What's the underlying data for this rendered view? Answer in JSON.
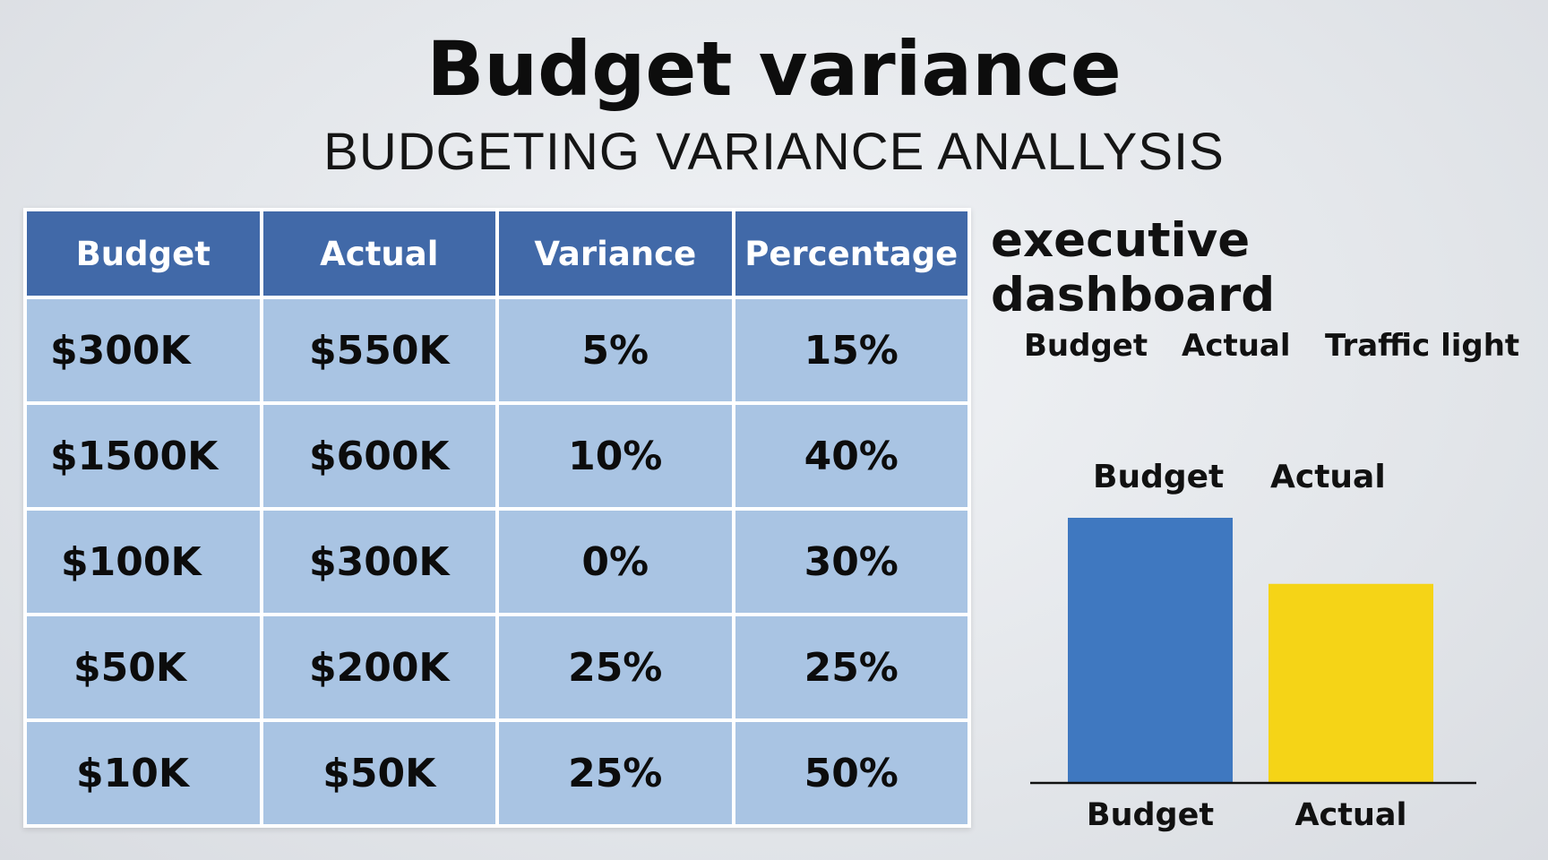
{
  "header": {
    "title": "Budget variance",
    "subtitle": "BUDGETING VARIANCE ANALLYSIS"
  },
  "table": {
    "columns": [
      "Budget",
      "Actual",
      "Variance",
      "Percentage"
    ],
    "rows": [
      [
        "$300K",
        "$550K",
        "5%",
        "15%"
      ],
      [
        "$1500K",
        "$600K",
        "10%",
        "40%"
      ],
      [
        "$100K",
        "$300K",
        "0%",
        "30%"
      ],
      [
        "$50K",
        "$200K",
        "25%",
        "25%"
      ],
      [
        "$10K",
        "$50K",
        "25%",
        "50%"
      ]
    ]
  },
  "dashboard": {
    "title": "executive dashboard",
    "legend": [
      "Budget",
      "Actual",
      "Traffic light"
    ],
    "bar_top_labels": [
      "Budget",
      "Actual"
    ]
  },
  "colors": {
    "header_blue": "#4169a8",
    "cell_blue": "#a9c4e3",
    "bar_budget": "#3f78c0",
    "bar_actual": "#f5d417"
  },
  "chart_data": {
    "type": "bar",
    "categories": [
      "Budget",
      "Actual"
    ],
    "values": [
      100,
      75
    ],
    "ylim": [
      0,
      100
    ],
    "grid": false,
    "colors": [
      "#3f78c0",
      "#f5d417"
    ]
  }
}
